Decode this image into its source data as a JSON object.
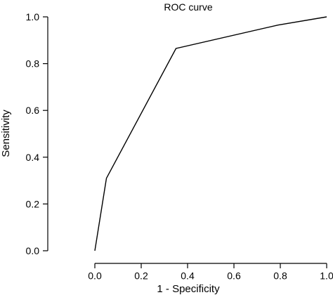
{
  "chart_data": {
    "type": "line",
    "title": "ROC curve",
    "xlabel": "1 - Specificity",
    "ylabel": "Sensitivity",
    "xlim": [
      0.0,
      1.0
    ],
    "ylim": [
      0.0,
      1.0
    ],
    "x_ticks": [
      "0.0",
      "0.2",
      "0.4",
      "0.6",
      "0.8",
      "1.0"
    ],
    "y_ticks": [
      "0.0",
      "0.2",
      "0.4",
      "0.6",
      "0.8",
      "1.0"
    ],
    "grid": false,
    "legend": "none",
    "series": [
      {
        "x": [
          0.0,
          0.05,
          0.35,
          0.79,
          1.0
        ],
        "y": [
          0.0,
          0.31,
          0.865,
          0.965,
          1.0
        ]
      }
    ],
    "colors": {
      "line": "#000000",
      "axis": "#000000"
    }
  }
}
